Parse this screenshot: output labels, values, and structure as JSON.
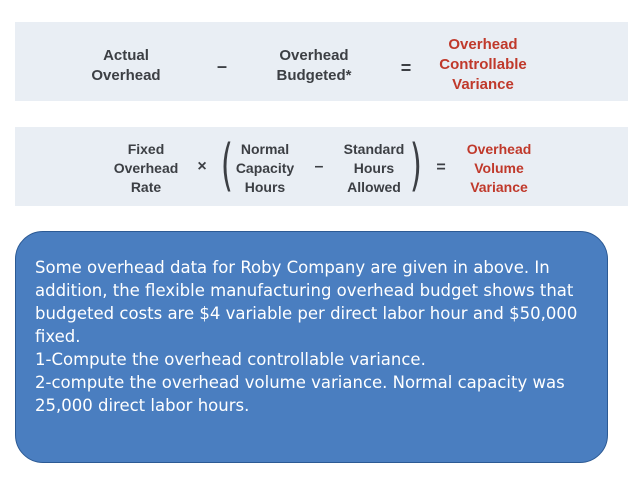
{
  "formula1": {
    "actual_overhead": [
      "Actual",
      "Overhead"
    ],
    "minus": "–",
    "overhead_budgeted": [
      "Overhead",
      "Budgeted*"
    ],
    "equals": "=",
    "result": [
      "Overhead",
      "Controllable",
      "Variance"
    ]
  },
  "formula2": {
    "fixed_overhead_rate": [
      "Fixed",
      "Overhead",
      "Rate"
    ],
    "times": "×",
    "normal_capacity_hours": [
      "Normal",
      "Capacity",
      "Hours"
    ],
    "minus": "–",
    "standard_hours_allowed": [
      "Standard",
      "Hours",
      "Allowed"
    ],
    "equals": "=",
    "result": [
      "Overhead",
      "Volume",
      "Variance"
    ]
  },
  "colors": {
    "panel_bg": "#e9eef4",
    "result_red": "#c0392b",
    "callout_bg": "#4a7ec0",
    "callout_text": "#ffffff"
  },
  "callout": {
    "lines": [
      "Some overhead data for Roby Company are given in above. In",
      "addition, the flexible manufacturing overhead budget shows that",
      "budgeted costs are $4 variable per direct labor hour and $50,000",
      "fixed.",
      "1-Compute the overhead controllable variance.",
      "2-compute the overhead volume variance. Normal capacity was",
      "25,000 direct labor hours."
    ]
  }
}
